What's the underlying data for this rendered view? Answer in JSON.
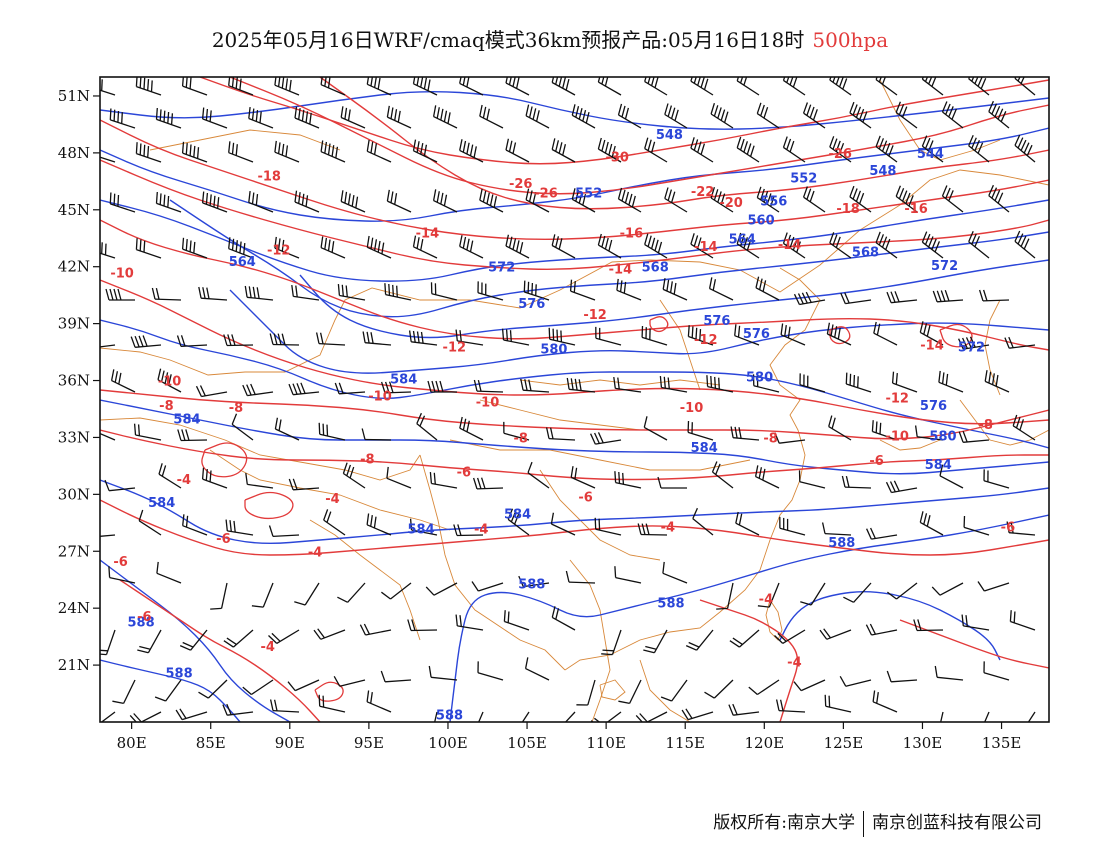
{
  "title": {
    "main": "2025年05月16日WRF/cmaq模式36km预报产品:05月16日18时",
    "level": "500hpa"
  },
  "footer": {
    "copyright": "版权所有:南京大学",
    "company": "南京创蓝科技有限公司"
  },
  "colors": {
    "temperature": "#e23b3b",
    "height": "#2b46d8",
    "border": "#d8883a",
    "wind": "#111111"
  },
  "map": {
    "lon_range": [
      78,
      138
    ],
    "lat_range": [
      18,
      52
    ],
    "lon_ticks": [
      "80E",
      "85E",
      "90E",
      "95E",
      "100E",
      "105E",
      "110E",
      "115E",
      "120E",
      "125E",
      "130E",
      "135E"
    ],
    "lat_ticks": [
      "51N",
      "48N",
      "45N",
      "42N",
      "39N",
      "36N",
      "33N",
      "30N",
      "27N",
      "24N",
      "21N"
    ],
    "height_labels": [
      {
        "t": "548",
        "lon": 114.0,
        "lat": 49.0
      },
      {
        "t": "544",
        "lon": 130.5,
        "lat": 48.0
      },
      {
        "t": "548",
        "lon": 127.5,
        "lat": 47.1
      },
      {
        "t": "552",
        "lon": 108.9,
        "lat": 45.9
      },
      {
        "t": "552",
        "lon": 122.5,
        "lat": 46.7
      },
      {
        "t": "556",
        "lon": 120.6,
        "lat": 45.5
      },
      {
        "t": "560",
        "lon": 119.8,
        "lat": 44.5
      },
      {
        "t": "564",
        "lon": 118.6,
        "lat": 43.5
      },
      {
        "t": "568",
        "lon": 126.4,
        "lat": 42.8
      },
      {
        "t": "572",
        "lon": 131.4,
        "lat": 42.1
      },
      {
        "t": "568",
        "lon": 113.1,
        "lat": 42.0
      },
      {
        "t": "572",
        "lon": 103.4,
        "lat": 42.0
      },
      {
        "t": "564",
        "lon": 87.0,
        "lat": 42.3
      },
      {
        "t": "576",
        "lon": 105.3,
        "lat": 40.1
      },
      {
        "t": "576",
        "lon": 117.0,
        "lat": 39.2
      },
      {
        "t": "576",
        "lon": 119.5,
        "lat": 38.5
      },
      {
        "t": "580",
        "lon": 106.7,
        "lat": 37.7
      },
      {
        "t": "572",
        "lon": 133.1,
        "lat": 37.8
      },
      {
        "t": "584",
        "lon": 97.2,
        "lat": 36.1
      },
      {
        "t": "580",
        "lon": 119.7,
        "lat": 36.2
      },
      {
        "t": "576",
        "lon": 130.7,
        "lat": 34.7
      },
      {
        "t": "584",
        "lon": 83.5,
        "lat": 34.0
      },
      {
        "t": "580",
        "lon": 131.3,
        "lat": 33.1
      },
      {
        "t": "584",
        "lon": 116.2,
        "lat": 32.5
      },
      {
        "t": "584",
        "lon": 131.0,
        "lat": 31.6
      },
      {
        "t": "584",
        "lon": 81.9,
        "lat": 29.6
      },
      {
        "t": "584",
        "lon": 104.4,
        "lat": 29.0
      },
      {
        "t": "584",
        "lon": 98.3,
        "lat": 28.2
      },
      {
        "t": "588",
        "lon": 124.9,
        "lat": 27.5
      },
      {
        "t": "588",
        "lon": 105.3,
        "lat": 25.3
      },
      {
        "t": "588",
        "lon": 114.1,
        "lat": 24.3
      },
      {
        "t": "588",
        "lon": 80.6,
        "lat": 23.3
      },
      {
        "t": "588",
        "lon": 83.0,
        "lat": 20.6
      },
      {
        "t": "588",
        "lon": 100.1,
        "lat": 18.4
      }
    ],
    "temp_labels": [
      {
        "t": "-30",
        "lon": 110.7,
        "lat": 47.8
      },
      {
        "t": "-26",
        "lon": 104.6,
        "lat": 46.4
      },
      {
        "t": "-26",
        "lon": 106.2,
        "lat": 45.9
      },
      {
        "t": "-22",
        "lon": 116.1,
        "lat": 46.0
      },
      {
        "t": "-26",
        "lon": 124.8,
        "lat": 48.0
      },
      {
        "t": "-20",
        "lon": 117.9,
        "lat": 45.4
      },
      {
        "t": "-18",
        "lon": 125.3,
        "lat": 45.1
      },
      {
        "t": "-16",
        "lon": 129.6,
        "lat": 45.1
      },
      {
        "t": "-18",
        "lon": 88.7,
        "lat": 46.8
      },
      {
        "t": "-14",
        "lon": 98.7,
        "lat": 43.8
      },
      {
        "t": "-16",
        "lon": 111.6,
        "lat": 43.8
      },
      {
        "t": "-14",
        "lon": 116.3,
        "lat": 43.1
      },
      {
        "t": "-14",
        "lon": 121.6,
        "lat": 43.2
      },
      {
        "t": "-12",
        "lon": 89.3,
        "lat": 42.9
      },
      {
        "t": "-14",
        "lon": 110.9,
        "lat": 41.9
      },
      {
        "t": "-10",
        "lon": 79.4,
        "lat": 41.7
      },
      {
        "t": "-12",
        "lon": 109.3,
        "lat": 39.5
      },
      {
        "t": "-12",
        "lon": 100.4,
        "lat": 37.8
      },
      {
        "t": "-12",
        "lon": 116.3,
        "lat": 38.2
      },
      {
        "t": "-14",
        "lon": 130.6,
        "lat": 37.9
      },
      {
        "t": "-10",
        "lon": 82.4,
        "lat": 36.0
      },
      {
        "t": "-12",
        "lon": 128.4,
        "lat": 35.1
      },
      {
        "t": "-10",
        "lon": 95.7,
        "lat": 35.2
      },
      {
        "t": "-10",
        "lon": 102.5,
        "lat": 34.9
      },
      {
        "t": "-10",
        "lon": 115.4,
        "lat": 34.6
      },
      {
        "t": "-8",
        "lon": 82.2,
        "lat": 34.7
      },
      {
        "t": "-8",
        "lon": 86.6,
        "lat": 34.6
      },
      {
        "t": "-8",
        "lon": 134.0,
        "lat": 33.7
      },
      {
        "t": "-10",
        "lon": 128.4,
        "lat": 33.1
      },
      {
        "t": "-8",
        "lon": 104.6,
        "lat": 33.0
      },
      {
        "t": "-8",
        "lon": 120.4,
        "lat": 33.0
      },
      {
        "t": "-8",
        "lon": 94.9,
        "lat": 31.9
      },
      {
        "t": "-6",
        "lon": 101.0,
        "lat": 31.2
      },
      {
        "t": "-6",
        "lon": 127.1,
        "lat": 31.8
      },
      {
        "t": "-4",
        "lon": 83.3,
        "lat": 30.8
      },
      {
        "t": "-4",
        "lon": 92.7,
        "lat": 29.8
      },
      {
        "t": "-6",
        "lon": 108.7,
        "lat": 29.9
      },
      {
        "t": "-4",
        "lon": 102.1,
        "lat": 28.2
      },
      {
        "t": "-4",
        "lon": 113.9,
        "lat": 28.3
      },
      {
        "t": "-6",
        "lon": 85.8,
        "lat": 27.7
      },
      {
        "t": "-6",
        "lon": 135.4,
        "lat": 28.3
      },
      {
        "t": "-4",
        "lon": 91.6,
        "lat": 27.0
      },
      {
        "t": "-6",
        "lon": 79.3,
        "lat": 26.5
      },
      {
        "t": "-6",
        "lon": 80.8,
        "lat": 23.6
      },
      {
        "t": "-4",
        "lon": 88.6,
        "lat": 22.0
      },
      {
        "t": "-4",
        "lon": 120.1,
        "lat": 24.5
      },
      {
        "t": "-4",
        "lon": 121.9,
        "lat": 21.2
      }
    ]
  }
}
